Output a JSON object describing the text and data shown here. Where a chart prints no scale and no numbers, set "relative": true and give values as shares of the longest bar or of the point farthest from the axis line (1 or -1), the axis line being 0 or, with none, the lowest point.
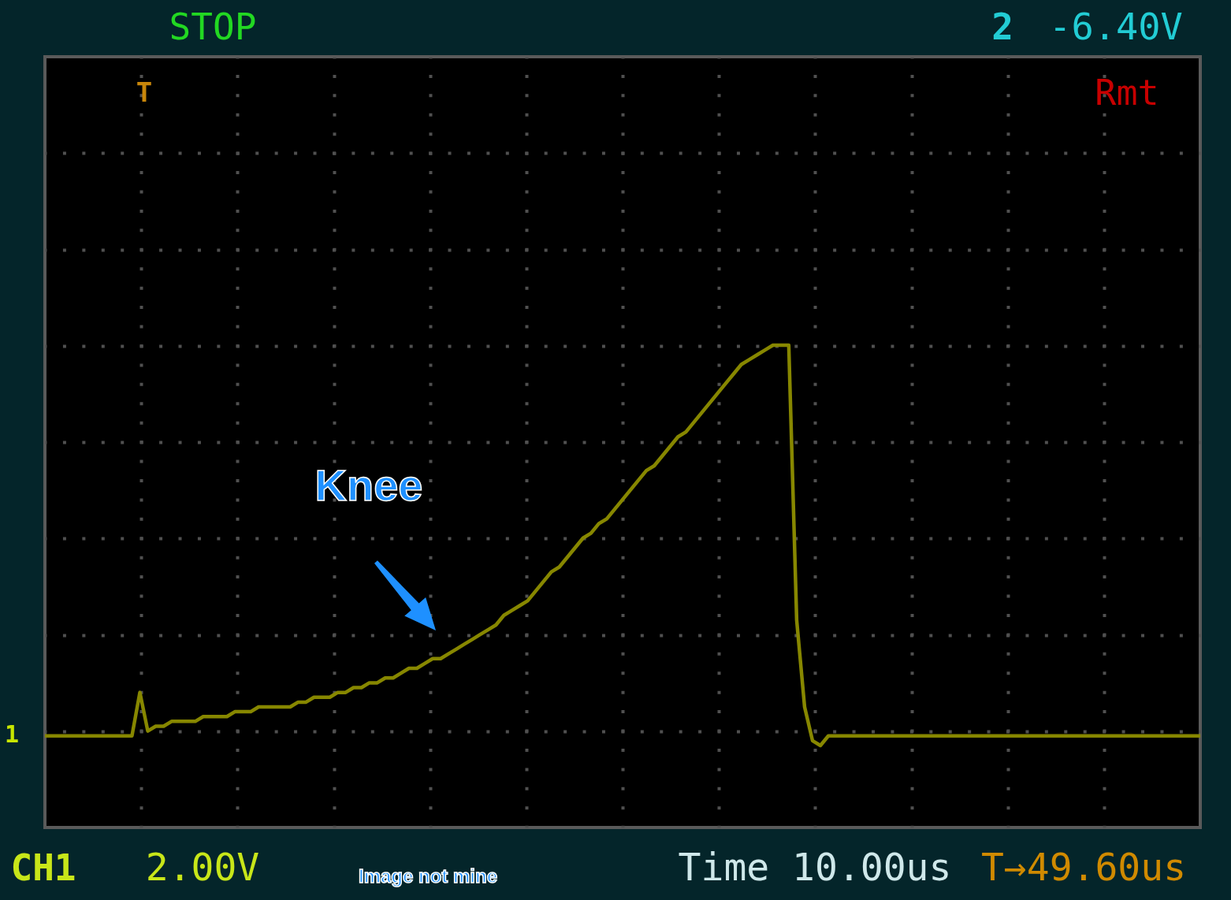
{
  "chart_data": {
    "type": "line",
    "relative": true,
    "grid": true,
    "categories": [
      null,
      null,
      null,
      null,
      null,
      null,
      null,
      null,
      null,
      null,
      null,
      null,
      null,
      null,
      null,
      null,
      null,
      null,
      null,
      null,
      null,
      null,
      null,
      null,
      null,
      null,
      null,
      null,
      null,
      null,
      null,
      null,
      null,
      null,
      null,
      null,
      null,
      null,
      null,
      null,
      null,
      null,
      null,
      null,
      null,
      null,
      null,
      null,
      null,
      null,
      null,
      null,
      null,
      null,
      null,
      null,
      null,
      null,
      null,
      null,
      null,
      null,
      null,
      null,
      null,
      null,
      null,
      null,
      null,
      null,
      null,
      null,
      null,
      null,
      null,
      null,
      null,
      null,
      null,
      null,
      null,
      null,
      null,
      null,
      null,
      null,
      null,
      null,
      null,
      null,
      null,
      null,
      null,
      null,
      null,
      null,
      null,
      null,
      null,
      null,
      null,
      null,
      null,
      null,
      null,
      null,
      null,
      null,
      null,
      null,
      null,
      null,
      null,
      null,
      null,
      null,
      null,
      null,
      null,
      null,
      null,
      null,
      null,
      null,
      null,
      null,
      null,
      null,
      null,
      null,
      null,
      null,
      null,
      null,
      null,
      null,
      null,
      null,
      null,
      null,
      null,
      null,
      null,
      null,
      null,
      null,
      null
    ],
    "series": [
      {
        "color": "#878700",
        "values": [
          0.19,
          0.19,
          0.19,
          0.19,
          0.19,
          0.19,
          0.19,
          0.19,
          0.19,
          0.19,
          0.19,
          0.19,
          0.28,
          0.2,
          0.21,
          0.21,
          0.22,
          0.22,
          0.22,
          0.22,
          0.23,
          0.23,
          0.23,
          0.23,
          0.24,
          0.24,
          0.24,
          0.25,
          0.25,
          0.25,
          0.25,
          0.25,
          0.26,
          0.26,
          0.27,
          0.27,
          0.27,
          0.28,
          0.28,
          0.29,
          0.29,
          0.3,
          0.3,
          0.31,
          0.31,
          0.32,
          0.33,
          0.33,
          0.34,
          0.35,
          0.35,
          0.36,
          0.37,
          0.38,
          0.39,
          0.4,
          0.41,
          0.42,
          0.44,
          0.45,
          0.46,
          0.47,
          0.49,
          0.51,
          0.53,
          0.54,
          0.56,
          0.58,
          0.6,
          0.61,
          0.63,
          0.64,
          0.66,
          0.68,
          0.7,
          0.72,
          0.74,
          0.75,
          0.77,
          0.79,
          0.81,
          0.82,
          0.84,
          0.86,
          0.88,
          0.9,
          0.92,
          0.94,
          0.96,
          0.97,
          0.98,
          0.99,
          1,
          1,
          1,
          0.43,
          0.25,
          0.18,
          0.17,
          0.19,
          0.19,
          0.19,
          0.19,
          0.19,
          0.19,
          0.19,
          0.19,
          0.19,
          0.19,
          0.19,
          0.19,
          0.19,
          0.19,
          0.19,
          0.19,
          0.19,
          0.19,
          0.19,
          0.19,
          0.19,
          0.19,
          0.19,
          0.19,
          0.19,
          0.19,
          0.19,
          0.19,
          0.19,
          0.19,
          0.19,
          0.19,
          0.19,
          0.19,
          0.19,
          0.19,
          0.19,
          0.19,
          0.19,
          0.19,
          0.19,
          0.19,
          0.19,
          0.19,
          0.19,
          0.19,
          0.19,
          0.19
        ]
      }
    ],
    "annotations": [
      "STOP",
      "2",
      "-6.40V",
      "T",
      "Rmt",
      "Knee",
      "1",
      "CH1",
      "2.00V",
      "Image not mine",
      "Time 10.00us",
      "T→49.60us"
    ]
  }
}
